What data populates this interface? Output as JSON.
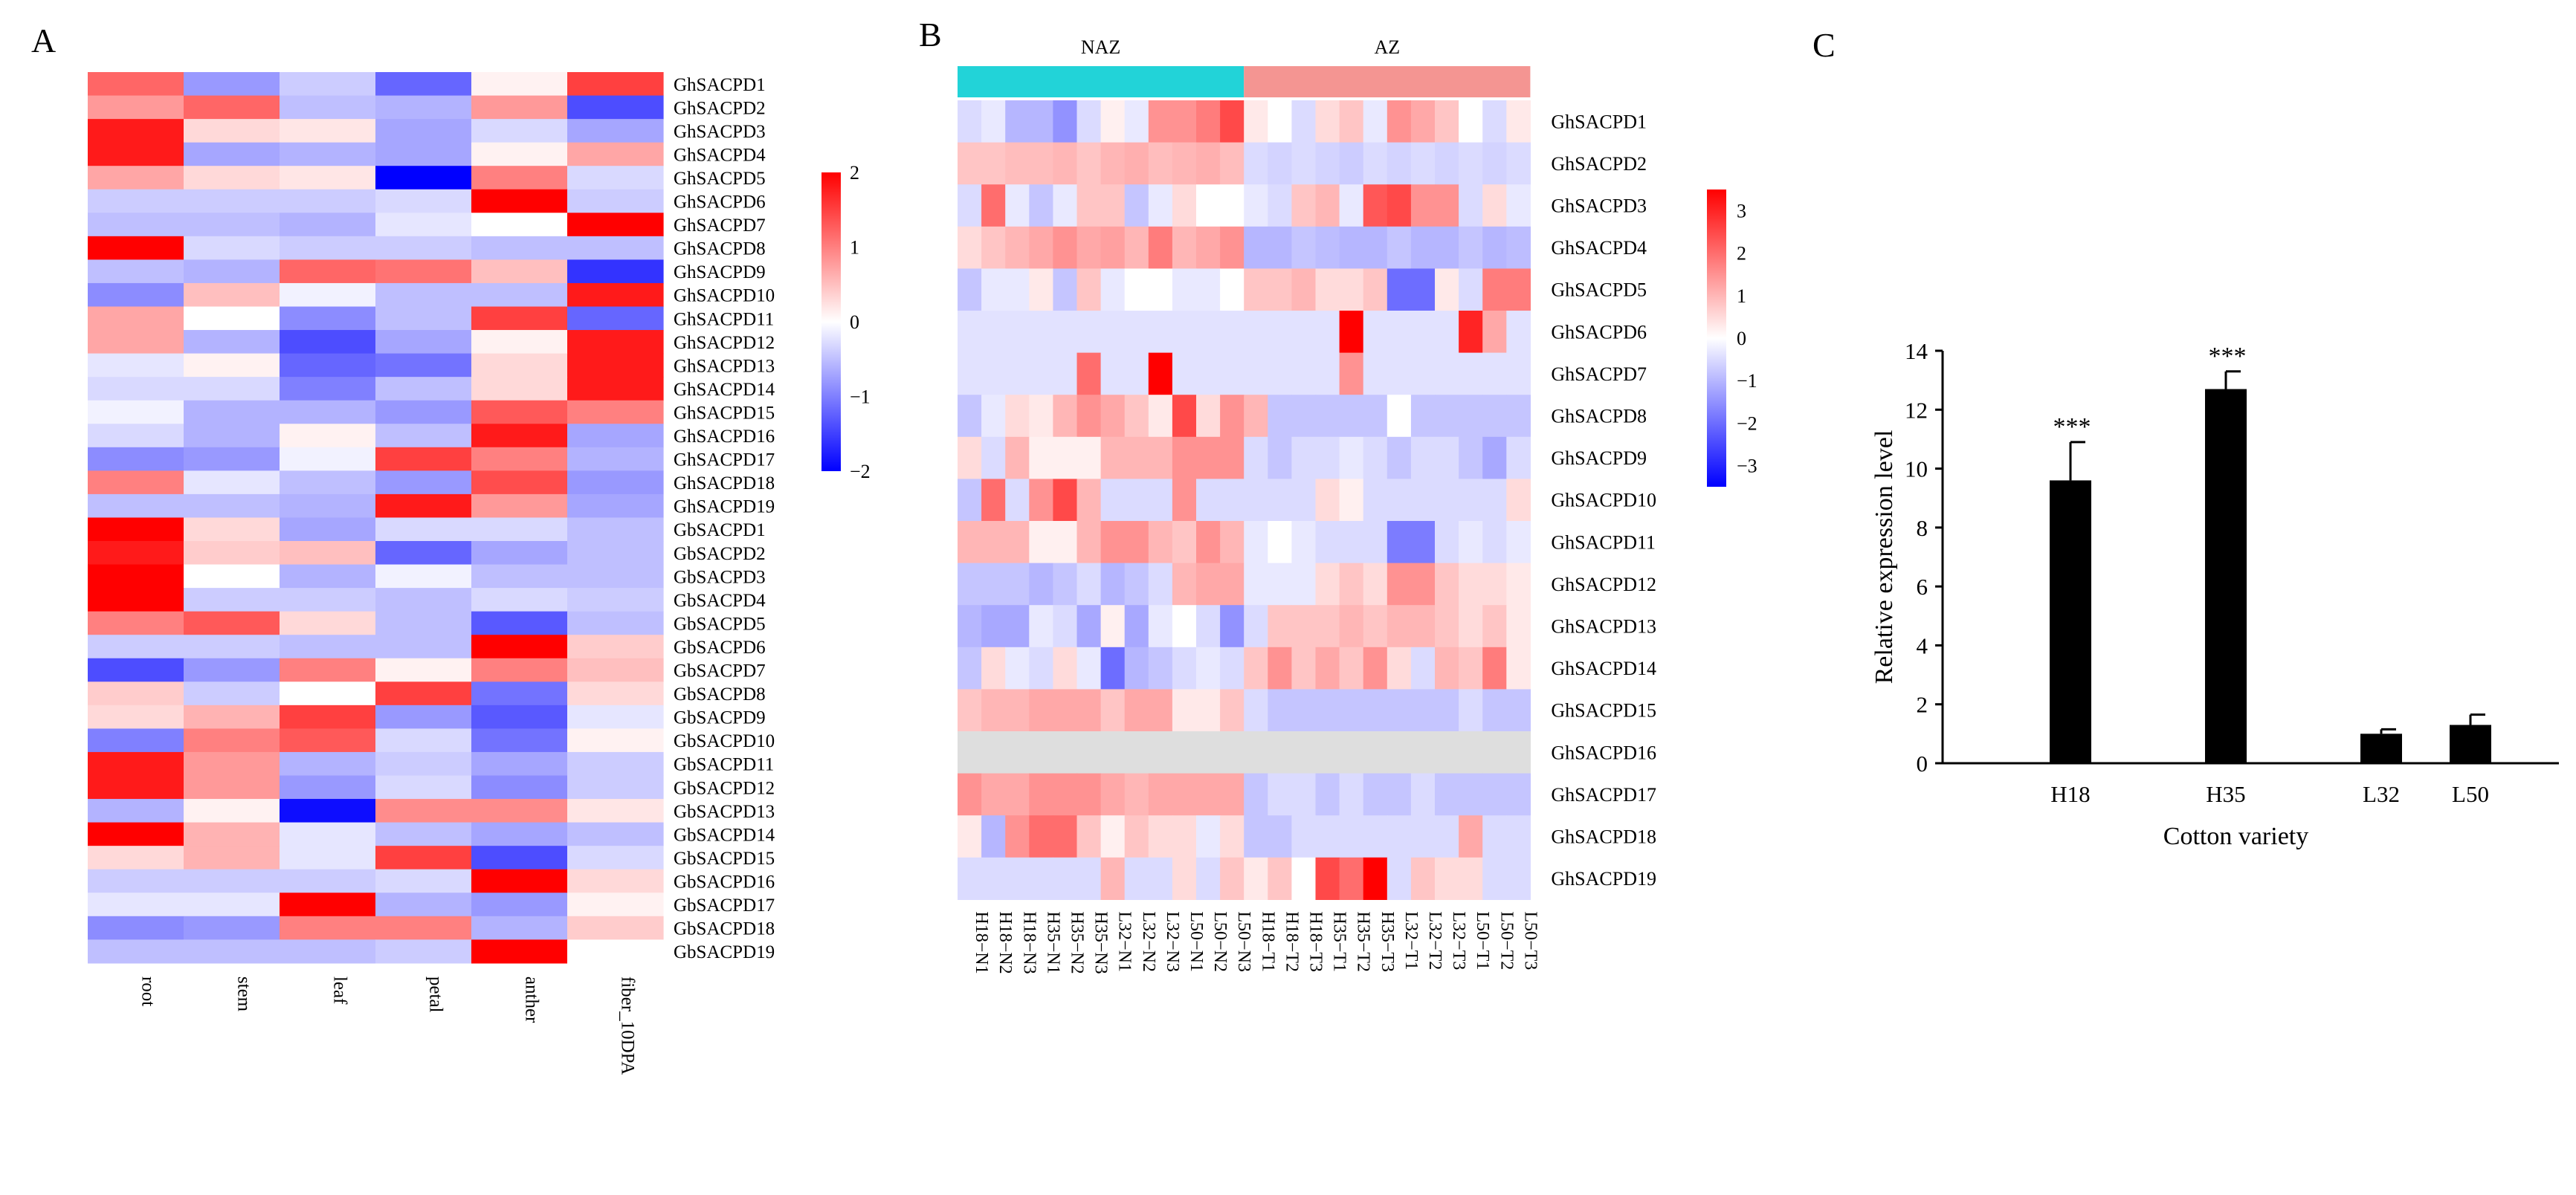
{
  "panels": {
    "a": "A",
    "b": "B",
    "c": "C"
  },
  "chart_data": [
    {
      "type": "heatmap",
      "panel": "A",
      "columns": [
        "root",
        "stem",
        "leaf",
        "petal",
        "anther",
        "fiber_10DPA"
      ],
      "rows": [
        "GhSACPD1",
        "GhSACPD2",
        "GhSACPD3",
        "GhSACPD4",
        "GhSACPD5",
        "GhSACPD6",
        "GhSACPD7",
        "GhSACPD8",
        "GhSACPD9",
        "GhSACPD10",
        "GhSACPD11",
        "GhSACPD12",
        "GhSACPD13",
        "GhSACPD14",
        "GhSACPD15",
        "GhSACPD16",
        "GhSACPD17",
        "GhSACPD18",
        "GhSACPD19",
        "GbSACPD1",
        "GbSACPD2",
        "GbSACPD3",
        "GbSACPD4",
        "GbSACPD5",
        "GbSACPD6",
        "GbSACPD7",
        "GbSACPD8",
        "GbSACPD9",
        "GbSACPD10",
        "GbSACPD11",
        "GbSACPD12",
        "GbSACPD13",
        "GbSACPD14",
        "GbSACPD15",
        "GbSACPD16",
        "GbSACPD17",
        "GbSACPD18",
        "GbSACPD19"
      ],
      "values": [
        [
          1.2,
          -0.8,
          -0.4,
          -1.2,
          0.1,
          1.5
        ],
        [
          0.8,
          1.2,
          -0.5,
          -0.6,
          0.8,
          -1.4
        ],
        [
          1.8,
          0.3,
          0.2,
          -0.7,
          -0.3,
          -0.7
        ],
        [
          1.8,
          -0.7,
          -0.6,
          -0.7,
          0.1,
          0.7
        ],
        [
          0.7,
          0.3,
          0.2,
          -2.0,
          1.0,
          -0.3
        ],
        [
          -0.4,
          -0.4,
          -0.4,
          -0.3,
          2.0,
          -0.4
        ],
        [
          -0.5,
          -0.5,
          -0.6,
          -0.2,
          0.0,
          2.0
        ],
        [
          2.0,
          -0.3,
          -0.4,
          -0.4,
          -0.5,
          -0.5
        ],
        [
          -0.5,
          -0.6,
          1.2,
          1.1,
          0.5,
          -1.6
        ],
        [
          -0.9,
          0.5,
          -0.1,
          -0.5,
          -0.5,
          1.8
        ],
        [
          0.7,
          0.0,
          -0.9,
          -0.5,
          1.5,
          -1.2
        ],
        [
          0.7,
          -0.6,
          -1.4,
          -0.7,
          0.1,
          1.8
        ],
        [
          -0.2,
          0.1,
          -1.2,
          -1.1,
          0.3,
          1.8
        ],
        [
          -0.3,
          -0.3,
          -1.0,
          -0.5,
          0.3,
          1.8
        ],
        [
          -0.1,
          -0.6,
          -0.6,
          -0.8,
          1.3,
          1.0
        ],
        [
          -0.3,
          -0.6,
          0.1,
          -0.5,
          1.8,
          -0.7
        ],
        [
          -0.9,
          -0.8,
          -0.1,
          1.5,
          1.0,
          -0.6
        ],
        [
          1.0,
          -0.2,
          -0.5,
          -0.8,
          1.4,
          -0.8
        ],
        [
          -0.5,
          -0.5,
          -0.6,
          1.8,
          0.8,
          -0.7
        ],
        [
          2.0,
          0.3,
          -0.7,
          -0.3,
          -0.3,
          -0.5
        ],
        [
          1.8,
          0.4,
          0.5,
          -1.2,
          -0.7,
          -0.5
        ],
        [
          2.0,
          0.0,
          -0.6,
          -0.1,
          -0.5,
          -0.5
        ],
        [
          2.0,
          -0.4,
          -0.4,
          -0.5,
          -0.3,
          -0.4
        ],
        [
          1.0,
          1.3,
          0.3,
          -0.5,
          -1.3,
          -0.5
        ],
        [
          -0.4,
          -0.4,
          -0.5,
          -0.5,
          2.0,
          0.4
        ],
        [
          -1.4,
          -0.8,
          1.0,
          0.1,
          1.0,
          0.5
        ],
        [
          0.4,
          -0.4,
          0.0,
          1.5,
          -1.1,
          0.3
        ],
        [
          0.3,
          0.6,
          1.5,
          -0.8,
          -1.3,
          -0.2
        ],
        [
          -1.0,
          1.0,
          1.3,
          -0.3,
          -1.1,
          0.1
        ],
        [
          1.8,
          0.8,
          -0.6,
          -0.4,
          -0.7,
          -0.4
        ],
        [
          1.8,
          0.8,
          -0.8,
          -0.3,
          -0.9,
          -0.4
        ],
        [
          -0.6,
          0.1,
          -1.9,
          0.9,
          0.9,
          0.2
        ],
        [
          2.0,
          0.6,
          -0.2,
          -0.5,
          -0.7,
          -0.5
        ],
        [
          0.3,
          0.6,
          -0.2,
          1.5,
          -1.4,
          -0.3
        ],
        [
          -0.4,
          -0.4,
          -0.4,
          -0.3,
          2.0,
          0.3
        ],
        [
          -0.2,
          -0.2,
          2.0,
          -0.6,
          -0.8,
          0.1
        ],
        [
          -0.9,
          -0.8,
          1.0,
          1.0,
          -0.6,
          0.4
        ],
        [
          -0.5,
          -0.5,
          -0.5,
          -0.4,
          2.0,
          0.0
        ]
      ],
      "scale": {
        "min": -2,
        "max": 2,
        "ticks": [
          "2",
          "1",
          "0",
          "−1",
          "−2"
        ]
      },
      "colors": {
        "low": "#0000ff",
        "mid": "#ffffff",
        "high": "#ff0000"
      }
    },
    {
      "type": "heatmap",
      "panel": "B",
      "groups": [
        {
          "name": "NAZ",
          "color": "#22d3d8"
        },
        {
          "name": "AZ",
          "color": "#f49592"
        }
      ],
      "columns": [
        "H18−N1",
        "H18−N2",
        "H18−N3",
        "H35−N1",
        "H35−N2",
        "H35−N3",
        "L32−N1",
        "L32−N2",
        "L32−N3",
        "L50−N1",
        "L50−N2",
        "L50−N3",
        "H18−T1",
        "H18−T2",
        "H18−T3",
        "H35−T1",
        "H35−T2",
        "H35−T3",
        "L32−T1",
        "L32−T2",
        "L32−T3",
        "L50−T1",
        "L50−T2",
        "L50−T3"
      ],
      "rows": [
        "GhSACPD1",
        "GhSACPD2",
        "GhSACPD3",
        "GhSACPD4",
        "GhSACPD5",
        "GhSACPD6",
        "GhSACPD7",
        "GhSACPD8",
        "GhSACPD9",
        "GhSACPD10",
        "GhSACPD11",
        "GhSACPD12",
        "GhSACPD13",
        "GhSACPD14",
        "GhSACPD15",
        "GhSACPD16",
        "GhSACPD17",
        "GhSACPD18",
        "GhSACPD19"
      ],
      "values": [
        [
          -0.5,
          -0.3,
          -1.0,
          -1.0,
          -1.5,
          -0.5,
          0.2,
          -0.3,
          1.5,
          1.5,
          1.8,
          2.5,
          0.3,
          0.0,
          -0.5,
          0.5,
          0.8,
          -0.3,
          1.5,
          1.2,
          0.8,
          0.0,
          -0.5,
          0.3
        ],
        [
          0.8,
          0.8,
          0.9,
          0.9,
          1.0,
          0.8,
          1.0,
          1.1,
          0.9,
          1.0,
          1.1,
          0.9,
          -0.5,
          -0.6,
          -0.5,
          -0.6,
          -0.7,
          -0.5,
          -0.6,
          -0.5,
          -0.6,
          -0.5,
          -0.6,
          -0.5
        ],
        [
          -0.5,
          2.0,
          -0.3,
          -0.8,
          -0.3,
          0.8,
          0.8,
          -0.8,
          -0.3,
          0.5,
          0.0,
          0.0,
          -0.3,
          -0.5,
          0.8,
          1.0,
          -0.3,
          2.3,
          2.5,
          1.5,
          1.5,
          -0.5,
          0.5,
          -0.3
        ],
        [
          0.5,
          0.8,
          1.0,
          1.2,
          1.5,
          1.2,
          1.3,
          1.0,
          1.8,
          1.0,
          1.2,
          1.5,
          -1.0,
          -1.0,
          -0.8,
          -0.9,
          -1.0,
          -1.0,
          -0.8,
          -1.0,
          -1.0,
          -0.8,
          -1.0,
          -0.9
        ],
        [
          -0.8,
          -0.3,
          -0.3,
          0.3,
          -0.8,
          0.8,
          -0.3,
          0.0,
          0.0,
          -0.3,
          -0.3,
          0.0,
          0.8,
          0.8,
          1.0,
          0.5,
          0.5,
          0.8,
          -2.0,
          -2.0,
          0.3,
          -0.5,
          1.8,
          1.8
        ],
        [
          -0.4,
          -0.4,
          -0.4,
          -0.4,
          -0.4,
          -0.4,
          -0.4,
          -0.4,
          -0.4,
          -0.4,
          -0.4,
          -0.4,
          -0.4,
          -0.4,
          -0.4,
          -0.4,
          3.5,
          -0.4,
          -0.4,
          -0.4,
          -0.4,
          3.0,
          1.2,
          -0.4
        ],
        [
          -0.4,
          -0.4,
          -0.4,
          -0.4,
          -0.4,
          2.0,
          -0.4,
          -0.4,
          3.5,
          -0.4,
          -0.4,
          -0.4,
          -0.4,
          -0.4,
          -0.4,
          -0.4,
          1.5,
          -0.4,
          -0.4,
          -0.4,
          -0.4,
          -0.4,
          -0.4,
          -0.4
        ],
        [
          -0.8,
          -0.3,
          0.5,
          0.3,
          1.0,
          1.5,
          1.2,
          0.8,
          0.3,
          2.5,
          0.5,
          1.5,
          1.0,
          -0.8,
          -0.8,
          -0.8,
          -0.8,
          -0.8,
          0.0,
          -0.8,
          -0.8,
          -0.8,
          -0.8,
          -0.8
        ],
        [
          0.5,
          -0.5,
          1.0,
          0.2,
          0.2,
          0.2,
          1.0,
          1.0,
          1.0,
          1.5,
          1.5,
          1.5,
          -0.5,
          -0.8,
          -0.5,
          -0.5,
          -0.3,
          -0.5,
          -0.8,
          -0.5,
          -0.5,
          -0.8,
          -1.2,
          -0.5
        ],
        [
          -0.8,
          2.0,
          -0.5,
          1.5,
          2.5,
          1.0,
          -0.5,
          -0.5,
          -0.5,
          1.5,
          -0.5,
          -0.5,
          -0.5,
          -0.5,
          -0.5,
          0.5,
          0.2,
          -0.5,
          -0.5,
          -0.5,
          -0.5,
          -0.5,
          -0.5,
          0.5
        ],
        [
          1.0,
          1.0,
          1.0,
          0.2,
          0.2,
          1.0,
          1.5,
          1.5,
          1.0,
          0.8,
          1.5,
          1.0,
          -0.3,
          0.0,
          -0.3,
          -0.5,
          -0.5,
          -0.5,
          -1.8,
          -1.8,
          -0.5,
          -0.3,
          -0.5,
          -0.3
        ],
        [
          -0.8,
          -0.8,
          -0.8,
          -1.0,
          -0.8,
          -0.5,
          -1.0,
          -0.8,
          -0.5,
          1.0,
          1.2,
          1.2,
          -0.3,
          -0.3,
          -0.3,
          0.5,
          0.8,
          0.5,
          1.5,
          1.5,
          0.8,
          0.5,
          0.5,
          0.3
        ],
        [
          -1.0,
          -1.2,
          -1.2,
          -0.3,
          -0.5,
          -1.2,
          0.2,
          -1.2,
          -0.3,
          0.0,
          -0.5,
          -1.5,
          -0.5,
          0.8,
          0.8,
          0.8,
          1.0,
          0.8,
          1.0,
          1.0,
          0.8,
          0.5,
          0.8,
          0.3
        ],
        [
          -0.8,
          0.5,
          -0.3,
          -0.5,
          0.5,
          -0.3,
          -2.0,
          -1.0,
          -0.8,
          -0.5,
          -0.3,
          -0.5,
          0.8,
          1.5,
          0.8,
          1.2,
          0.8,
          1.5,
          0.5,
          -0.5,
          1.0,
          0.8,
          1.8,
          0.3
        ],
        [
          0.8,
          1.0,
          1.0,
          1.2,
          1.2,
          1.2,
          0.8,
          1.2,
          1.2,
          0.3,
          0.3,
          0.8,
          -0.5,
          -0.8,
          -0.8,
          -0.8,
          -0.8,
          -0.8,
          -0.8,
          -0.8,
          -0.8,
          -0.5,
          -0.8,
          -0.8
        ],
        [
          null,
          null,
          null,
          null,
          null,
          null,
          null,
          null,
          null,
          null,
          null,
          null,
          null,
          null,
          null,
          null,
          null,
          null,
          null,
          null,
          null,
          null,
          null,
          null
        ],
        [
          1.5,
          1.2,
          1.2,
          1.5,
          1.5,
          1.5,
          1.2,
          1.0,
          1.2,
          1.2,
          1.2,
          1.2,
          -0.8,
          -0.5,
          -0.5,
          -0.8,
          -0.5,
          -0.8,
          -0.8,
          -0.5,
          -0.8,
          -0.8,
          -0.8,
          -0.8
        ],
        [
          0.3,
          -1.0,
          1.5,
          2.0,
          2.0,
          0.8,
          0.2,
          0.8,
          0.5,
          0.5,
          -0.3,
          0.5,
          -0.8,
          -0.8,
          -0.5,
          -0.5,
          -0.5,
          -0.5,
          -0.5,
          -0.5,
          -0.5,
          1.2,
          -0.5,
          -0.5
        ],
        [
          -0.5,
          -0.5,
          -0.5,
          -0.5,
          -0.5,
          -0.5,
          1.0,
          -0.5,
          -0.5,
          0.5,
          -0.5,
          0.8,
          0.3,
          0.8,
          0.0,
          2.5,
          2.0,
          3.5,
          -0.5,
          0.8,
          0.5,
          0.5,
          -0.5,
          -0.5
        ]
      ],
      "scale": {
        "min": -3.5,
        "max": 3.5,
        "ticks": [
          "3",
          "2",
          "1",
          "0",
          "−1",
          "−2",
          "−3"
        ]
      },
      "missing_color": "#dedede",
      "colors": {
        "low": "#0000ff",
        "mid": "#ffffff",
        "high": "#ff0000"
      }
    },
    {
      "type": "bar",
      "panel": "C",
      "categories": [
        "H18",
        "H35",
        "L32",
        "L50"
      ],
      "values": [
        9.6,
        12.7,
        1.0,
        1.3
      ],
      "errors": [
        1.3,
        0.6,
        0.15,
        0.35
      ],
      "annotations": [
        "***",
        "***",
        "",
        ""
      ],
      "xlabel": "Cotton variety",
      "ylabel": "Relative expression level",
      "ylim": [
        0,
        14
      ],
      "yticks": [
        "0",
        "2",
        "4",
        "6",
        "8",
        "10",
        "12",
        "14"
      ],
      "bar_color": "#000000"
    }
  ]
}
